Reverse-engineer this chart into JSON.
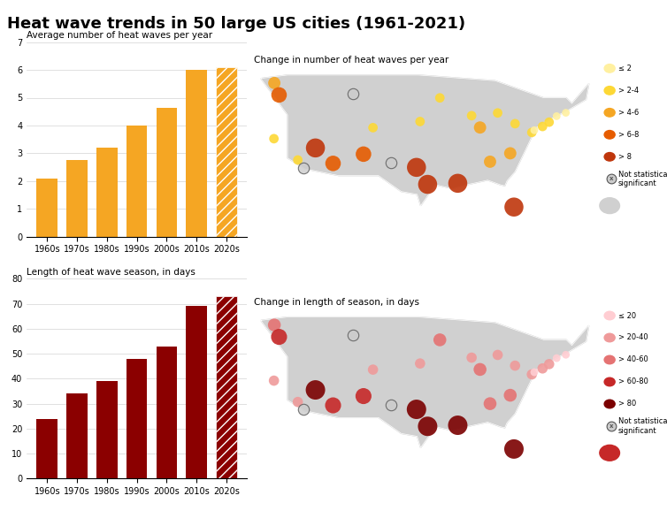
{
  "title": "Heat wave trends in 50 large US cities (1961-2021)",
  "bar_chart1": {
    "title": "Average number of heat waves per year",
    "categories": [
      "1960s",
      "1970s",
      "1980s",
      "1990s",
      "2000s",
      "2010s",
      "2020s"
    ],
    "values": [
      2.1,
      2.75,
      3.2,
      4.0,
      4.65,
      6.0,
      6.1
    ],
    "color": "#F5A623",
    "hatch_last": true,
    "ylim": [
      0,
      7
    ],
    "yticks": [
      0,
      1,
      2,
      3,
      4,
      5,
      6,
      7
    ]
  },
  "bar_chart2": {
    "title": "Length of heat wave season, in days",
    "categories": [
      "1960s",
      "1970s",
      "1980s",
      "1990s",
      "2000s",
      "2010s",
      "2020s"
    ],
    "values": [
      24,
      34,
      39,
      48,
      53,
      69,
      73
    ],
    "color": "#8B0000",
    "hatch_last": true,
    "ylim": [
      0,
      80
    ],
    "yticks": [
      0,
      10,
      20,
      30,
      40,
      50,
      60,
      70,
      80
    ]
  },
  "map1": {
    "title": "Change in number of heat waves per year",
    "legend_labels": [
      "≤ 2",
      "> 2-4",
      "> 4-6",
      "> 6-8",
      "> 8",
      "Not statistically\nsignificant"
    ],
    "legend_colors": [
      "#FFF0A0",
      "#FDD835",
      "#F5A623",
      "#E65C00",
      "#BF360C",
      "#CCCCCC"
    ],
    "cities": [
      {
        "lon": -122.33,
        "lat": 47.6,
        "val": 5.5,
        "sig": true
      },
      {
        "lon": -121.5,
        "lat": 45.5,
        "val": 6.5,
        "sig": true
      },
      {
        "lon": -122.4,
        "lat": 37.8,
        "val": 3.5,
        "sig": true
      },
      {
        "lon": -118.2,
        "lat": 34.05,
        "val": 3.5,
        "sig": true
      },
      {
        "lon": -117.15,
        "lat": 32.7,
        "val": 7.5,
        "sig": false
      },
      {
        "lon": -115.1,
        "lat": 36.17,
        "val": 9.0,
        "sig": true
      },
      {
        "lon": -112.0,
        "lat": 33.45,
        "val": 7.5,
        "sig": true
      },
      {
        "lon": -104.98,
        "lat": 39.74,
        "val": 3.5,
        "sig": true
      },
      {
        "lon": -97.33,
        "lat": 32.75,
        "val": 9.0,
        "sig": true
      },
      {
        "lon": -95.37,
        "lat": 29.76,
        "val": 9.0,
        "sig": true
      },
      {
        "lon": -90.07,
        "lat": 29.95,
        "val": 9.0,
        "sig": true
      },
      {
        "lon": -87.63,
        "lat": 41.85,
        "val": 3.5,
        "sig": true
      },
      {
        "lon": -86.15,
        "lat": 39.77,
        "val": 5.5,
        "sig": true
      },
      {
        "lon": -84.39,
        "lat": 33.75,
        "val": 5.5,
        "sig": true
      },
      {
        "lon": -83.05,
        "lat": 42.33,
        "val": 3.5,
        "sig": true
      },
      {
        "lon": -80.19,
        "lat": 25.77,
        "val": 9.0,
        "sig": true
      },
      {
        "lon": -80.84,
        "lat": 35.23,
        "val": 5.5,
        "sig": true
      },
      {
        "lon": -79.99,
        "lat": 40.44,
        "val": 3.5,
        "sig": true
      },
      {
        "lon": -77.04,
        "lat": 38.9,
        "val": 3.5,
        "sig": true
      },
      {
        "lon": -75.16,
        "lat": 39.95,
        "val": 3.5,
        "sig": true
      },
      {
        "lon": -74.0,
        "lat": 40.71,
        "val": 3.5,
        "sig": true
      },
      {
        "lon": -71.06,
        "lat": 42.36,
        "val": 1.5,
        "sig": true
      },
      {
        "lon": -72.68,
        "lat": 41.76,
        "val": 1.5,
        "sig": true
      },
      {
        "lon": -76.61,
        "lat": 39.29,
        "val": 1.5,
        "sig": true
      },
      {
        "lon": -93.22,
        "lat": 44.98,
        "val": 3.5,
        "sig": true
      },
      {
        "lon": -96.7,
        "lat": 40.82,
        "val": 3.5,
        "sig": true
      },
      {
        "lon": -106.65,
        "lat": 35.08,
        "val": 7.5,
        "sig": true
      },
      {
        "lon": -101.87,
        "lat": 33.57,
        "val": 7.5,
        "sig": false
      },
      {
        "lon": -108.55,
        "lat": 45.78,
        "val": 3.5,
        "sig": false
      }
    ]
  },
  "map2": {
    "title": "Change in length of season, in days",
    "legend_labels": [
      "≤ 20",
      "> 20-40",
      "> 40-60",
      "> 60-80",
      "> 80",
      "Not statistically\nsignificant"
    ],
    "legend_colors": [
      "#FFCDD2",
      "#EF9A9A",
      "#E57373",
      "#C62828",
      "#7B0000",
      "#CCCCCC"
    ],
    "cities": [
      {
        "lon": -122.33,
        "lat": 47.6,
        "val": 45,
        "sig": true
      },
      {
        "lon": -121.5,
        "lat": 45.5,
        "val": 65,
        "sig": true
      },
      {
        "lon": -122.4,
        "lat": 37.8,
        "val": 35,
        "sig": true
      },
      {
        "lon": -118.2,
        "lat": 34.05,
        "val": 35,
        "sig": true
      },
      {
        "lon": -117.15,
        "lat": 32.7,
        "val": 55,
        "sig": false
      },
      {
        "lon": -115.1,
        "lat": 36.17,
        "val": 85,
        "sig": true
      },
      {
        "lon": -112.0,
        "lat": 33.45,
        "val": 75,
        "sig": true
      },
      {
        "lon": -104.98,
        "lat": 39.74,
        "val": 35,
        "sig": true
      },
      {
        "lon": -97.33,
        "lat": 32.75,
        "val": 85,
        "sig": true
      },
      {
        "lon": -95.37,
        "lat": 29.76,
        "val": 85,
        "sig": true
      },
      {
        "lon": -90.07,
        "lat": 29.95,
        "val": 85,
        "sig": true
      },
      {
        "lon": -87.63,
        "lat": 41.85,
        "val": 35,
        "sig": true
      },
      {
        "lon": -86.15,
        "lat": 39.77,
        "val": 55,
        "sig": true
      },
      {
        "lon": -84.39,
        "lat": 33.75,
        "val": 55,
        "sig": true
      },
      {
        "lon": -83.05,
        "lat": 42.33,
        "val": 35,
        "sig": true
      },
      {
        "lon": -80.19,
        "lat": 25.77,
        "val": 85,
        "sig": true
      },
      {
        "lon": -80.84,
        "lat": 35.23,
        "val": 55,
        "sig": true
      },
      {
        "lon": -79.99,
        "lat": 40.44,
        "val": 35,
        "sig": true
      },
      {
        "lon": -77.04,
        "lat": 38.9,
        "val": 35,
        "sig": true
      },
      {
        "lon": -75.16,
        "lat": 39.95,
        "val": 35,
        "sig": true
      },
      {
        "lon": -74.0,
        "lat": 40.71,
        "val": 25,
        "sig": true
      },
      {
        "lon": -71.06,
        "lat": 42.36,
        "val": 15,
        "sig": true
      },
      {
        "lon": -72.68,
        "lat": 41.76,
        "val": 15,
        "sig": true
      },
      {
        "lon": -76.61,
        "lat": 39.29,
        "val": 15,
        "sig": true
      },
      {
        "lon": -93.22,
        "lat": 44.98,
        "val": 45,
        "sig": true
      },
      {
        "lon": -96.7,
        "lat": 40.82,
        "val": 35,
        "sig": true
      },
      {
        "lon": -106.65,
        "lat": 35.08,
        "val": 65,
        "sig": true
      },
      {
        "lon": -101.87,
        "lat": 33.57,
        "val": 35,
        "sig": false
      },
      {
        "lon": -108.55,
        "lat": 45.78,
        "val": 15,
        "sig": false
      }
    ]
  },
  "background_color": "#FFFFFF",
  "map_color": "#D3D3D3",
  "map_border_color": "#FFFFFF"
}
